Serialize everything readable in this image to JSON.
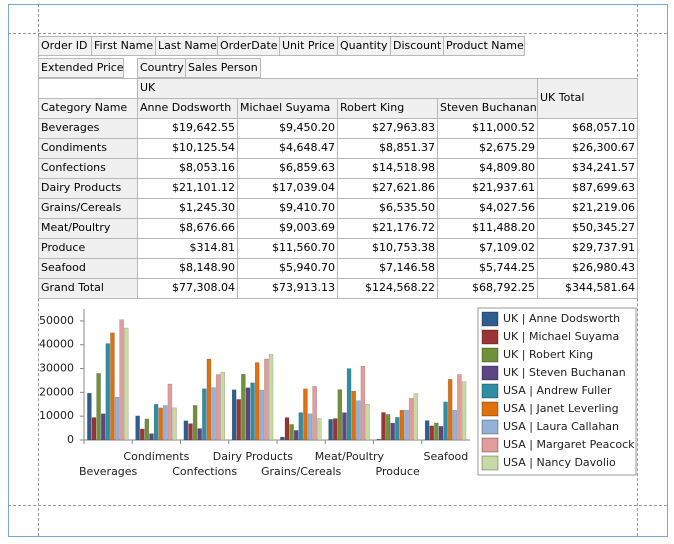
{
  "pivot": {
    "filter_fields": [
      "Order ID",
      "First Name",
      "Last Name",
      "OrderDate",
      "Unit Price",
      "Quantity",
      "Discount",
      "Product Name"
    ],
    "data_field": "Extended Price",
    "column_fields": [
      "Country",
      "Sales Person"
    ],
    "row_field": "Category Name",
    "country": "UK",
    "columns": [
      "Anne Dodsworth",
      "Michael Suyama",
      "Robert King",
      "Steven Buchanan"
    ],
    "total_header": "UK Total",
    "rows": [
      [
        "Beverages",
        "$19,642.55",
        "$9,450.20",
        "$27,963.83",
        "$11,000.52",
        "$68,057.10"
      ],
      [
        "Condiments",
        "$10,125.54",
        "$4,648.47",
        "$8,851.37",
        "$2,675.29",
        "$26,300.67"
      ],
      [
        "Confections",
        "$8,053.16",
        "$6,859.63",
        "$14,518.98",
        "$4,809.80",
        "$34,241.57"
      ],
      [
        "Dairy Products",
        "$21,101.12",
        "$17,039.04",
        "$27,621.86",
        "$21,937.61",
        "$87,699.63"
      ],
      [
        "Grains/Cereals",
        "$1,245.30",
        "$9,410.70",
        "$6,535.50",
        "$4,027.56",
        "$21,219.06"
      ],
      [
        "Meat/Poultry",
        "$8,676.66",
        "$9,003.69",
        "$21,176.72",
        "$11,488.20",
        "$50,345.27"
      ],
      [
        "Produce",
        "$314.81",
        "$11,560.70",
        "$10,753.38",
        "$7,109.02",
        "$29,737.91"
      ],
      [
        "Seafood",
        "$8,148.90",
        "$5,940.70",
        "$7,146.58",
        "$5,744.25",
        "$26,980.43"
      ],
      [
        "Grand Total",
        "$77,308.04",
        "$73,913.13",
        "$124,568.22",
        "$68,792.25",
        "$344,581.64"
      ]
    ]
  },
  "chart_data": {
    "type": "bar",
    "categories": [
      "Beverages",
      "Condiments",
      "Confections",
      "Dairy Products",
      "Grains/Cereals",
      "Meat/Poultry",
      "Produce",
      "Seafood"
    ],
    "series": [
      {
        "name": "UK | Anne Dodsworth",
        "color": "#2f5d8e",
        "values": [
          19642.55,
          10125.54,
          8053.16,
          21101.12,
          1245.3,
          8676.66,
          314.81,
          8148.9
        ]
      },
      {
        "name": "UK | Michael Suyama",
        "color": "#9c3434",
        "values": [
          9450.2,
          4648.47,
          6859.63,
          17039.04,
          9410.7,
          9003.69,
          11560.7,
          5940.7
        ]
      },
      {
        "name": "UK | Robert King",
        "color": "#71903a",
        "values": [
          27963.83,
          8851.37,
          14518.98,
          27621.86,
          6535.5,
          21176.72,
          10753.38,
          7146.58
        ]
      },
      {
        "name": "UK | Steven Buchanan",
        "color": "#5c4683",
        "values": [
          11000.52,
          2675.29,
          4809.8,
          21937.61,
          4027.56,
          11488.2,
          7109.02,
          5744.25
        ]
      },
      {
        "name": "USA | Andrew Fuller",
        "color": "#2f8ea3",
        "values": [
          40500,
          15000,
          21500,
          24000,
          11500,
          30000,
          9500,
          16000
        ]
      },
      {
        "name": "USA | Janet Leverling",
        "color": "#e0700f",
        "values": [
          45000,
          13500,
          34000,
          32500,
          21500,
          20500,
          12500,
          25500
        ]
      },
      {
        "name": "USA | Laura Callahan",
        "color": "#94b2d9",
        "values": [
          18000,
          14500,
          22000,
          21000,
          11000,
          16500,
          12500,
          12500
        ]
      },
      {
        "name": "USA | Margaret Peacock",
        "color": "#e39c9c",
        "values": [
          50500,
          23500,
          27500,
          34000,
          22500,
          31000,
          17500,
          27500
        ]
      },
      {
        "name": "USA | Nancy Davolio",
        "color": "#c8daa3",
        "values": [
          47000,
          13500,
          28500,
          36000,
          9000,
          15000,
          19500,
          24500
        ]
      }
    ],
    "ylim": [
      0,
      55000
    ],
    "yticks": [
      0,
      10000,
      20000,
      30000,
      40000,
      50000
    ],
    "legend": "right"
  }
}
